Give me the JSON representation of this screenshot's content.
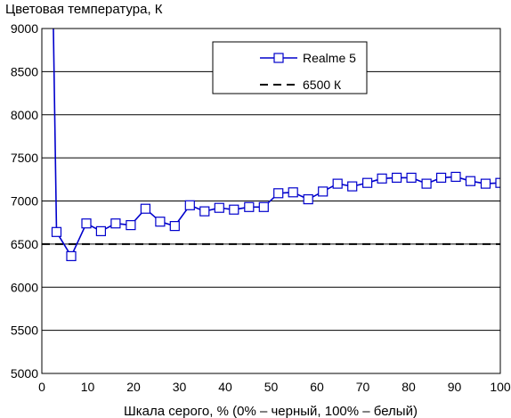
{
  "chart_data": {
    "type": "line",
    "ylabel": "Цветовая температура, К",
    "xlabel": "Шкала серого, % (0% – черный, 100% – белый)",
    "xlim": [
      0,
      100
    ],
    "ylim": [
      5000,
      9000
    ],
    "x_ticks": [
      "0",
      "10",
      "20",
      "30",
      "40",
      "50",
      "60",
      "70",
      "80",
      "90",
      "100"
    ],
    "y_ticks": [
      "5000",
      "5500",
      "6000",
      "6500",
      "7000",
      "7500",
      "8000",
      "8500",
      "9000"
    ],
    "grid": "horizontal",
    "legend_position": "top-right",
    "series": [
      {
        "name": "Realme 5",
        "color": "#0000cc",
        "marker": "square",
        "points": [
          [
            2.5,
            9050
          ],
          [
            3.2,
            6640
          ],
          [
            6.4,
            6360
          ],
          [
            9.7,
            6740
          ],
          [
            12.9,
            6650
          ],
          [
            16.1,
            6740
          ],
          [
            19.4,
            6720
          ],
          [
            22.6,
            6910
          ],
          [
            25.8,
            6760
          ],
          [
            29.0,
            6710
          ],
          [
            32.3,
            6950
          ],
          [
            35.5,
            6880
          ],
          [
            38.7,
            6920
          ],
          [
            41.9,
            6900
          ],
          [
            45.2,
            6930
          ],
          [
            48.4,
            6930
          ],
          [
            51.6,
            7090
          ],
          [
            54.8,
            7100
          ],
          [
            58.1,
            7020
          ],
          [
            61.3,
            7110
          ],
          [
            64.5,
            7200
          ],
          [
            67.7,
            7170
          ],
          [
            71.0,
            7210
          ],
          [
            74.2,
            7260
          ],
          [
            77.4,
            7270
          ],
          [
            80.6,
            7270
          ],
          [
            83.9,
            7200
          ],
          [
            87.1,
            7270
          ],
          [
            90.3,
            7280
          ],
          [
            93.5,
            7230
          ],
          [
            96.8,
            7200
          ],
          [
            100.0,
            7210
          ]
        ]
      },
      {
        "name": "6500 К",
        "color": "#000000",
        "dash": "dashed",
        "points": [
          [
            0,
            6500
          ],
          [
            100,
            6500
          ]
        ]
      }
    ]
  }
}
